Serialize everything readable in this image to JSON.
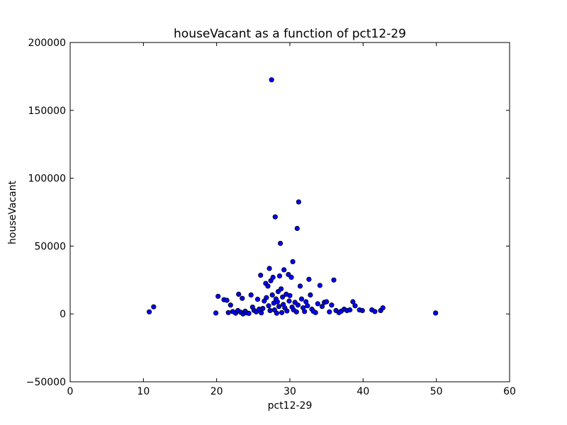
{
  "chart_data": {
    "type": "scatter",
    "title": "houseVacant as a function of pct12-29",
    "xlabel": "pct12-29",
    "ylabel": "houseVacant",
    "xlim": [
      0,
      60
    ],
    "ylim": [
      -50000,
      200000
    ],
    "x_ticks": [
      0,
      10,
      20,
      30,
      40,
      50,
      60
    ],
    "y_ticks": [
      -50000,
      0,
      50000,
      100000,
      150000,
      200000
    ],
    "x_tick_labels": [
      "0",
      "10",
      "20",
      "30",
      "40",
      "50",
      "60"
    ],
    "y_tick_labels": [
      "−50000",
      "0",
      "50000",
      "100000",
      "150000",
      "200000"
    ],
    "grid": false,
    "legend": null,
    "marker_color": "#0000ff",
    "marker_edge_color": "#000000",
    "points": [
      [
        10.8,
        1500
      ],
      [
        11.4,
        5200
      ],
      [
        19.9,
        700
      ],
      [
        20.2,
        13000
      ],
      [
        21.0,
        10500
      ],
      [
        21.4,
        10000
      ],
      [
        21.6,
        1000
      ],
      [
        21.9,
        6500
      ],
      [
        22.2,
        1800
      ],
      [
        22.6,
        600
      ],
      [
        22.9,
        2500
      ],
      [
        23.0,
        14500
      ],
      [
        23.3,
        1200
      ],
      [
        23.5,
        11500
      ],
      [
        23.6,
        0
      ],
      [
        23.9,
        2000
      ],
      [
        24.1,
        800
      ],
      [
        24.4,
        400
      ],
      [
        24.7,
        14000
      ],
      [
        24.9,
        5000
      ],
      [
        25.1,
        2600
      ],
      [
        25.4,
        1500
      ],
      [
        25.6,
        10800
      ],
      [
        25.8,
        3500
      ],
      [
        26.0,
        28500
      ],
      [
        26.1,
        800
      ],
      [
        26.3,
        4000
      ],
      [
        26.5,
        9500
      ],
      [
        26.7,
        22500
      ],
      [
        26.8,
        12000
      ],
      [
        27.0,
        20500
      ],
      [
        27.1,
        6000
      ],
      [
        27.2,
        33500
      ],
      [
        27.3,
        2500
      ],
      [
        27.4,
        24500
      ],
      [
        27.5,
        172500
      ],
      [
        27.6,
        14000
      ],
      [
        27.7,
        27000
      ],
      [
        27.8,
        8000
      ],
      [
        27.9,
        3000
      ],
      [
        28.0,
        71500
      ],
      [
        28.1,
        11000
      ],
      [
        28.2,
        500
      ],
      [
        28.3,
        9000
      ],
      [
        28.4,
        16500
      ],
      [
        28.5,
        5500
      ],
      [
        28.6,
        28000
      ],
      [
        28.7,
        52000
      ],
      [
        28.8,
        18500
      ],
      [
        28.9,
        1000
      ],
      [
        29.0,
        12500
      ],
      [
        29.1,
        7000
      ],
      [
        29.2,
        32500
      ],
      [
        29.3,
        4500
      ],
      [
        29.5,
        14500
      ],
      [
        29.6,
        2200
      ],
      [
        29.8,
        29000
      ],
      [
        29.9,
        9500
      ],
      [
        30.0,
        13500
      ],
      [
        30.2,
        27000
      ],
      [
        30.3,
        5000
      ],
      [
        30.4,
        38500
      ],
      [
        30.5,
        3000
      ],
      [
        30.7,
        8500
      ],
      [
        30.9,
        1500
      ],
      [
        31.0,
        63000
      ],
      [
        31.1,
        6500
      ],
      [
        31.2,
        82500
      ],
      [
        31.4,
        20500
      ],
      [
        31.6,
        11000
      ],
      [
        31.8,
        4500
      ],
      [
        32.0,
        1800
      ],
      [
        32.2,
        9000
      ],
      [
        32.4,
        6000
      ],
      [
        32.6,
        25500
      ],
      [
        32.8,
        14000
      ],
      [
        33.0,
        3500
      ],
      [
        33.2,
        2000
      ],
      [
        33.5,
        1000
      ],
      [
        33.8,
        7500
      ],
      [
        34.1,
        21000
      ],
      [
        34.4,
        5500
      ],
      [
        34.7,
        8500
      ],
      [
        35.0,
        9000
      ],
      [
        35.4,
        1500
      ],
      [
        35.7,
        6500
      ],
      [
        36.0,
        25000
      ],
      [
        36.3,
        2500
      ],
      [
        36.7,
        1000
      ],
      [
        37.0,
        2000
      ],
      [
        37.4,
        3500
      ],
      [
        37.8,
        2500
      ],
      [
        38.2,
        3000
      ],
      [
        38.6,
        9000
      ],
      [
        38.9,
        6000
      ],
      [
        39.5,
        3000
      ],
      [
        39.9,
        2500
      ],
      [
        41.2,
        3000
      ],
      [
        41.6,
        1800
      ],
      [
        42.4,
        2500
      ],
      [
        42.7,
        4500
      ],
      [
        49.9,
        700
      ]
    ]
  }
}
